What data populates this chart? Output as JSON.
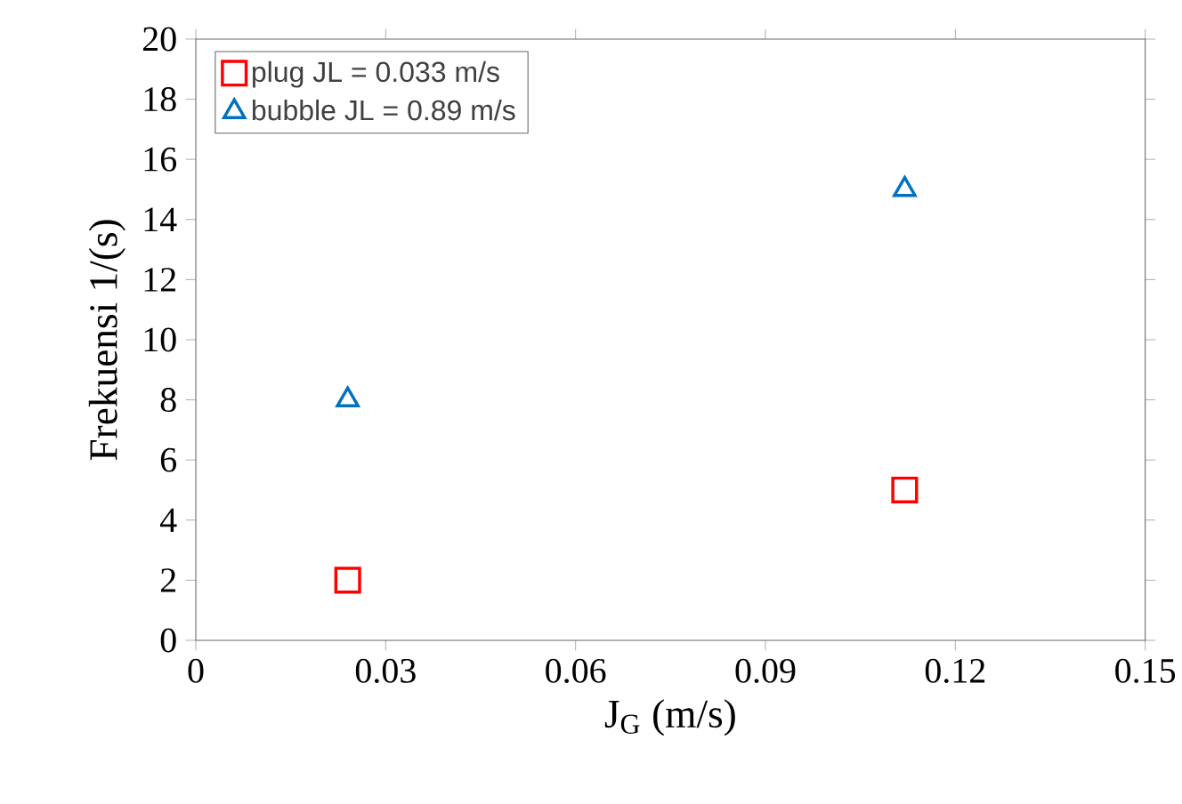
{
  "chart_data": {
    "type": "scatter",
    "xlabel": "J$_{G}$ (m/s)",
    "ylabel": "Frekuensi   1/(s)",
    "xlim": [
      0,
      0.15
    ],
    "ylim": [
      0,
      20
    ],
    "xticks": [
      0,
      0.03,
      0.06,
      0.09,
      0.12,
      0.15
    ],
    "yticks": [
      0,
      2,
      4,
      6,
      8,
      10,
      12,
      14,
      16,
      18,
      20
    ],
    "grid": false,
    "legend": "top left",
    "x": [
      0.024,
      0.112
    ],
    "series": [
      {
        "name": "plug JL = 0.033 m/s",
        "color": "#ff0000",
        "marker": "square",
        "values": [
          2,
          5
        ]
      },
      {
        "name": "bubble JL = 0.89 m/s",
        "color": "#0070c0",
        "marker": "triangle",
        "values": [
          8,
          15
        ]
      }
    ]
  }
}
